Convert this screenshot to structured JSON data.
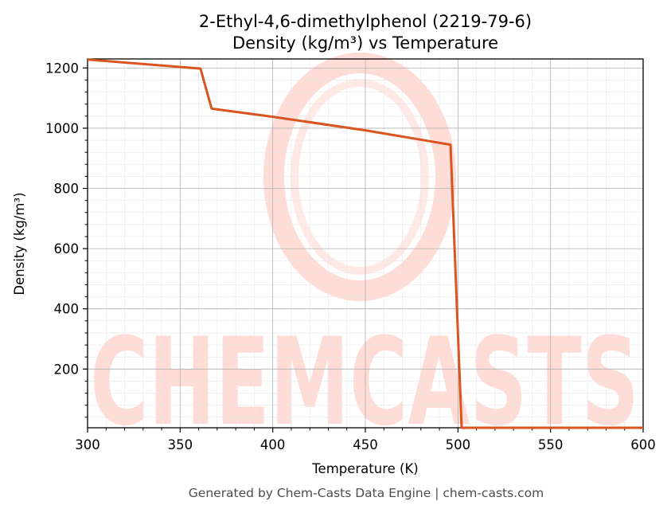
{
  "title_line1": "2-Ethyl-4,6-dimethylphenol (2219-79-6)",
  "title_line2": "Density (kg/m³) vs Temperature",
  "footer": "Generated by Chem-Casts Data Engine | chem-casts.com",
  "watermark": "CHEMCASTS",
  "colors": {
    "line": "#d9541e",
    "watermark": "#ffdcd6",
    "grid_major": "#b0b0b0",
    "grid_minor": "#e6e6e6"
  },
  "chart_data": {
    "type": "line",
    "xlabel": "Temperature (K)",
    "ylabel": "Density (kg/m³)",
    "xlim": [
      300,
      600
    ],
    "ylim": [
      5,
      1230
    ],
    "xticks": [
      300,
      350,
      400,
      450,
      500,
      550,
      600
    ],
    "yticks": [
      200,
      400,
      600,
      800,
      1000,
      1200
    ],
    "grid": true,
    "series": [
      {
        "x": [
          300,
          361,
          367,
          400,
          450,
          496,
          502,
          600
        ],
        "y": [
          1228,
          1198,
          1065,
          1038,
          993,
          945,
          5,
          5
        ]
      }
    ]
  }
}
